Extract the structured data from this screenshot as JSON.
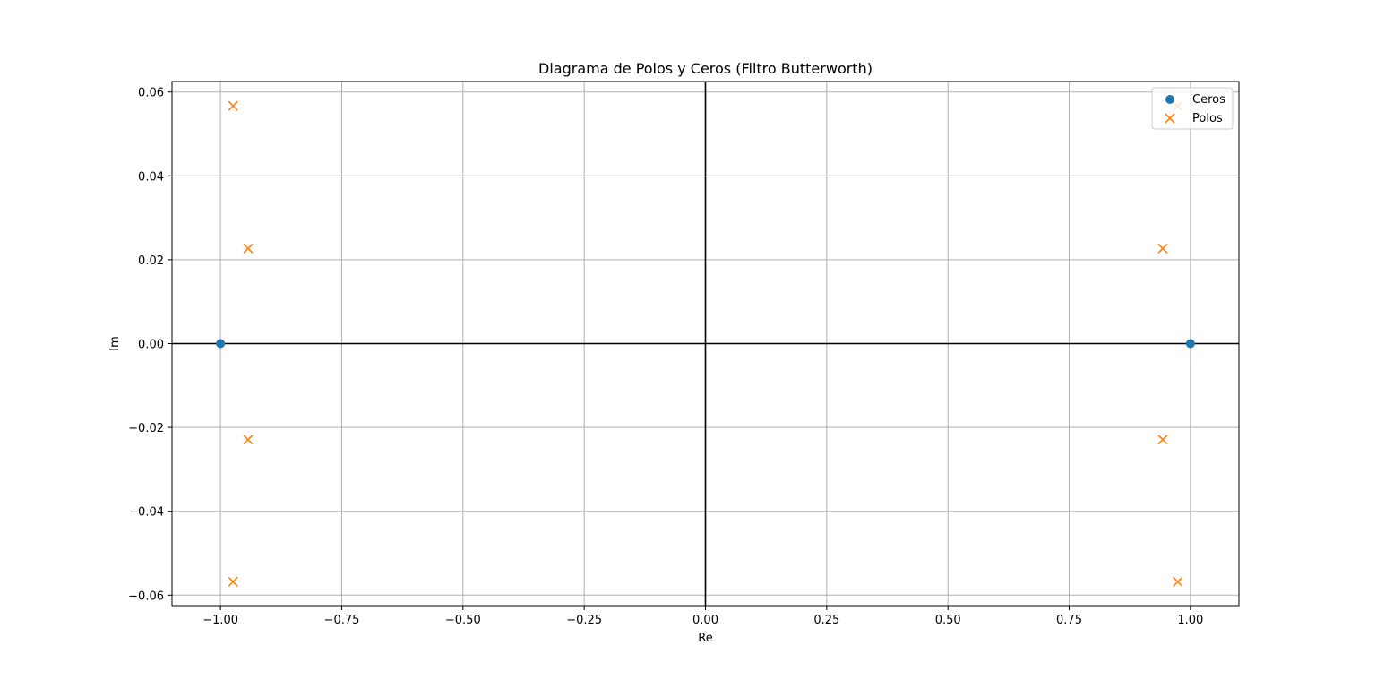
{
  "chart_data": {
    "type": "scatter",
    "title": "Diagrama de Polos y Ceros (Filtro Butterworth)",
    "xlabel": "Re",
    "ylabel": "Im",
    "xlim": [
      -1.1,
      1.1
    ],
    "ylim": [
      -0.0625,
      0.0625
    ],
    "grid": true,
    "legend_position": "top-right",
    "x_ticks": [
      -1.0,
      -0.75,
      -0.5,
      -0.25,
      0.0,
      0.25,
      0.5,
      0.75,
      1.0
    ],
    "x_tick_labels": [
      "−1.00",
      "−0.75",
      "−0.50",
      "−0.25",
      "0.00",
      "0.25",
      "0.50",
      "0.75",
      "1.00"
    ],
    "y_ticks": [
      -0.06,
      -0.04,
      -0.02,
      0.0,
      0.02,
      0.04,
      0.06
    ],
    "y_tick_labels": [
      "−0.06",
      "−0.04",
      "−0.02",
      "0.00",
      "0.02",
      "0.04",
      "0.06"
    ],
    "reference_lines": {
      "x": 0,
      "y": 0,
      "color": "#000000"
    },
    "series": [
      {
        "name": "Ceros",
        "marker": "circle",
        "color": "#1f77b4",
        "points": [
          {
            "x": -1.0,
            "y": 0.0
          },
          {
            "x": 1.0,
            "y": 0.0
          }
        ]
      },
      {
        "name": "Polos",
        "marker": "x",
        "color": "#ff7f0e",
        "points": [
          {
            "x": -0.974,
            "y": 0.0567
          },
          {
            "x": -0.943,
            "y": 0.0227
          },
          {
            "x": -0.943,
            "y": -0.0229
          },
          {
            "x": -0.974,
            "y": -0.0568
          },
          {
            "x": 0.974,
            "y": 0.0567
          },
          {
            "x": 0.943,
            "y": 0.0227
          },
          {
            "x": 0.943,
            "y": -0.0229
          },
          {
            "x": 0.974,
            "y": -0.0568
          }
        ]
      }
    ]
  }
}
